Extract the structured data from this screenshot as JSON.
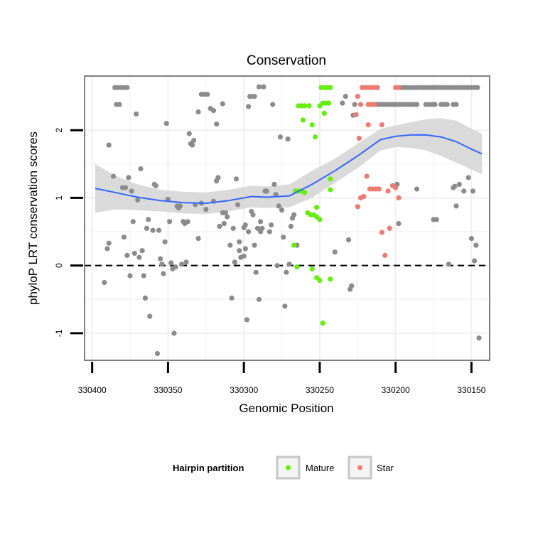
{
  "chart_data": {
    "type": "scatter",
    "title": "Conservation",
    "xlabel": "Genomic Position",
    "ylabel": "phyloP LRT conservation scores",
    "x_reversed": true,
    "xlim": [
      330405,
      330138
    ],
    "ylim": [
      -1.4,
      2.8
    ],
    "x_ticks": [
      330400,
      330350,
      330300,
      330250,
      330200,
      330150
    ],
    "y_ticks": [
      -1,
      0,
      1,
      2
    ],
    "reference_line": {
      "y": 0,
      "style": "dashed"
    },
    "legend": {
      "title": "Hairpin partition",
      "position": "bottom",
      "entries": [
        {
          "label": "Mature",
          "color": "#7CFC00"
        },
        {
          "label": "Star",
          "color": "#F8766D"
        }
      ]
    },
    "colors": {
      "other": "#8c8c8c",
      "mature": "#66ee11",
      "star": "#f07b72",
      "smooth": "#3366FF",
      "band": "#d6d6d6",
      "grid": "#efefef",
      "border": "#7f7f7f"
    },
    "smooth_line": {
      "x": [
        330398,
        330385,
        330370,
        330355,
        330340,
        330325,
        330310,
        330295,
        330285,
        330270,
        330255,
        330240,
        330225,
        330210,
        330200,
        330190,
        330180,
        330170,
        330160,
        330150,
        330143
      ],
      "y": [
        1.14,
        1.08,
        1.01,
        0.96,
        0.93,
        0.92,
        0.96,
        1.02,
        1.01,
        1.03,
        1.2,
        1.4,
        1.62,
        1.86,
        1.91,
        1.93,
        1.93,
        1.9,
        1.83,
        1.72,
        1.65
      ],
      "lower": [
        0.78,
        0.83,
        0.82,
        0.8,
        0.77,
        0.76,
        0.8,
        0.86,
        0.85,
        0.86,
        1.0,
        1.22,
        1.44,
        1.7,
        1.75,
        1.74,
        1.7,
        1.62,
        1.52,
        1.42,
        1.35
      ],
      "upper": [
        1.5,
        1.33,
        1.2,
        1.12,
        1.09,
        1.08,
        1.12,
        1.18,
        1.17,
        1.2,
        1.4,
        1.58,
        1.8,
        2.02,
        2.07,
        2.12,
        2.16,
        2.18,
        2.14,
        2.02,
        1.95
      ]
    },
    "series": [
      {
        "name": "Other",
        "points": [
          [
            330385,
            2.63
          ],
          [
            330383,
            2.63
          ],
          [
            330381,
            2.63
          ],
          [
            330379,
            2.63
          ],
          [
            330377,
            2.63
          ],
          [
            330384,
            2.38
          ],
          [
            330382,
            2.38
          ],
          [
            330389,
            1.78
          ],
          [
            330386,
            1.32
          ],
          [
            330380,
            1.15
          ],
          [
            330378,
            1.15
          ],
          [
            330376,
            1.3
          ],
          [
            330374,
            1.1
          ],
          [
            330392,
            -0.25
          ],
          [
            330390,
            0.25
          ],
          [
            330389,
            0.33
          ],
          [
            330379,
            0.42
          ],
          [
            330377,
            0.15
          ],
          [
            330375,
            -0.15
          ],
          [
            330373,
            0.65
          ],
          [
            330372,
            0.18
          ],
          [
            330371,
            2.24
          ],
          [
            330370,
            0.97
          ],
          [
            330369,
            0.12
          ],
          [
            330368,
            1.43
          ],
          [
            330367,
            0.22
          ],
          [
            330366,
            -0.15
          ],
          [
            330365,
            -0.48
          ],
          [
            330364,
            0.55
          ],
          [
            330363,
            0.68
          ],
          [
            330362,
            -0.75
          ],
          [
            330360,
            0.52
          ],
          [
            330359,
            1.2
          ],
          [
            330358,
            1.18
          ],
          [
            330357,
            -1.3
          ],
          [
            330356,
            0.52
          ],
          [
            330355,
            0.1
          ],
          [
            330354,
            0.02
          ],
          [
            330353,
            -0.12
          ],
          [
            330352,
            0.35
          ],
          [
            330351,
            2.1
          ],
          [
            330350,
            0.98
          ],
          [
            330349,
            0.65
          ],
          [
            330348,
            0.04
          ],
          [
            330347,
            -0.05
          ],
          [
            330346,
            -1.0
          ],
          [
            330345,
            -0.02
          ],
          [
            330344,
            0.88
          ],
          [
            330343,
            0.85
          ],
          [
            330342,
            0.88
          ],
          [
            330341,
            0.02
          ],
          [
            330340,
            0.65
          ],
          [
            330339,
            0.62
          ],
          [
            330338,
            0.05
          ],
          [
            330337,
            0.65
          ],
          [
            330336,
            1.95
          ],
          [
            330335,
            1.8
          ],
          [
            330334,
            1.78
          ],
          [
            330333,
            1.85
          ],
          [
            330330,
            2.27
          ],
          [
            330328,
            2.53
          ],
          [
            330326,
            2.53
          ],
          [
            330324,
            2.53
          ],
          [
            330322,
            2.32
          ],
          [
            330320,
            2.29
          ],
          [
            330318,
            1.25
          ],
          [
            330317,
            1.3
          ],
          [
            330316,
            0.58
          ],
          [
            330314,
            0.78
          ],
          [
            330312,
            0.78
          ],
          [
            330330,
            0.4
          ],
          [
            330332,
            0.9
          ],
          [
            330328,
            0.92
          ],
          [
            330325,
            0.83
          ],
          [
            330320,
            0.95
          ],
          [
            330318,
            2.09
          ],
          [
            330314,
            2.39
          ],
          [
            330313,
            0.62
          ],
          [
            330311,
            0.72
          ],
          [
            330309,
            0.3
          ],
          [
            330308,
            -0.48
          ],
          [
            330306,
            0.05
          ],
          [
            330305,
            1.28
          ],
          [
            330304,
            0.9
          ],
          [
            330303,
            0.35
          ],
          [
            330302,
            0.12
          ],
          [
            330300,
            0.56
          ],
          [
            330299,
            0.25
          ],
          [
            330298,
            -0.8
          ],
          [
            330297,
            2.35
          ],
          [
            330296,
            2.5
          ],
          [
            330295,
            2.5
          ],
          [
            330293,
            2.5
          ],
          [
            330290,
            2.64
          ],
          [
            330288,
            0.55
          ],
          [
            330287,
            2.64
          ],
          [
            330286,
            1.1
          ],
          [
            330285,
            1.1
          ],
          [
            330283,
            0.5
          ],
          [
            330282,
            0.6
          ],
          [
            330281,
            2.38
          ],
          [
            330280,
            1.2
          ],
          [
            330279,
            1.05
          ],
          [
            330278,
            0.0
          ],
          [
            330277,
            0.88
          ],
          [
            330276,
            1.9
          ],
          [
            330275,
            0.82
          ],
          [
            330274,
            0.42
          ],
          [
            330273,
            -0.6
          ],
          [
            330272,
            -0.1
          ],
          [
            330271,
            1.87
          ],
          [
            330270,
            0.02
          ],
          [
            330269,
            0.58
          ],
          [
            330268,
            0.7
          ],
          [
            330267,
            0.75
          ],
          [
            330266,
            1.1
          ],
          [
            330265,
            0.3
          ],
          [
            330303,
            0.22
          ],
          [
            330300,
            0.14
          ],
          [
            330299,
            0.6
          ],
          [
            330297,
            0.5
          ],
          [
            330294,
            0.75
          ],
          [
            330291,
            0.55
          ],
          [
            330289,
            0.65
          ],
          [
            330307,
            0.55
          ],
          [
            330295,
            0.8
          ],
          [
            330293,
            0.3
          ],
          [
            330292,
            -0.1
          ],
          [
            330290,
            -0.5
          ],
          [
            330289,
            0.5
          ],
          [
            330240,
            0.2
          ],
          [
            330235,
            2.4
          ],
          [
            330233,
            2.5
          ],
          [
            330231,
            0.38
          ],
          [
            330230,
            -0.35
          ],
          [
            330229,
            -0.3
          ],
          [
            330228,
            2.22
          ],
          [
            330227,
            2.38
          ],
          [
            330212,
            2.38
          ],
          [
            330210,
            2.38
          ],
          [
            330208,
            2.38
          ],
          [
            330206,
            2.38
          ],
          [
            330204,
            2.38
          ],
          [
            330202,
            2.38
          ],
          [
            330200,
            2.38
          ],
          [
            330198,
            2.38
          ],
          [
            330196,
            2.38
          ],
          [
            330194,
            2.38
          ],
          [
            330192,
            2.38
          ],
          [
            330190,
            2.38
          ],
          [
            330188,
            2.38
          ],
          [
            330186,
            2.38
          ],
          [
            330180,
            2.38
          ],
          [
            330178,
            2.38
          ],
          [
            330176,
            2.38
          ],
          [
            330174,
            2.38
          ],
          [
            330170,
            2.38
          ],
          [
            330168,
            2.38
          ],
          [
            330166,
            2.38
          ],
          [
            330162,
            2.38
          ],
          [
            330160,
            2.38
          ],
          [
            330198,
            2.63
          ],
          [
            330196,
            2.63
          ],
          [
            330194,
            2.63
          ],
          [
            330192,
            2.63
          ],
          [
            330190,
            2.63
          ],
          [
            330188,
            2.63
          ],
          [
            330186,
            2.63
          ],
          [
            330184,
            2.63
          ],
          [
            330182,
            2.63
          ],
          [
            330180,
            2.63
          ],
          [
            330178,
            2.63
          ],
          [
            330176,
            2.63
          ],
          [
            330174,
            2.63
          ],
          [
            330172,
            2.63
          ],
          [
            330170,
            2.63
          ],
          [
            330168,
            2.63
          ],
          [
            330166,
            2.63
          ],
          [
            330164,
            2.63
          ],
          [
            330162,
            2.63
          ],
          [
            330160,
            2.63
          ],
          [
            330158,
            2.63
          ],
          [
            330156,
            2.63
          ],
          [
            330154,
            2.63
          ],
          [
            330152,
            2.63
          ],
          [
            330150,
            2.63
          ],
          [
            330148,
            2.63
          ],
          [
            330146,
            2.63
          ],
          [
            330199,
            1.2
          ],
          [
            330198,
            0.62
          ],
          [
            330186,
            1.13
          ],
          [
            330175,
            0.68
          ],
          [
            330173,
            0.68
          ],
          [
            330165,
            0.02
          ],
          [
            330162,
            1.15
          ],
          [
            330161,
            1.17
          ],
          [
            330160,
            0.88
          ],
          [
            330158,
            1.2
          ],
          [
            330155,
            1.1
          ],
          [
            330152,
            1.3
          ],
          [
            330150,
            0.4
          ],
          [
            330149,
            1.1
          ],
          [
            330148,
            0.07
          ],
          [
            330147,
            0.3
          ],
          [
            330145,
            -1.07
          ]
        ]
      },
      {
        "name": "Mature",
        "points": [
          [
            330249,
            2.63
          ],
          [
            330247,
            2.63
          ],
          [
            330245,
            2.63
          ],
          [
            330243,
            2.63
          ],
          [
            330266,
            1.1
          ],
          [
            330264,
            1.1
          ],
          [
            330262,
            1.1
          ],
          [
            330260,
            1.08
          ],
          [
            330264,
            2.36
          ],
          [
            330262,
            2.36
          ],
          [
            330260,
            2.36
          ],
          [
            330257,
            2.36
          ],
          [
            330250,
            2.36
          ],
          [
            330248,
            2.4
          ],
          [
            330246,
            2.4
          ],
          [
            330244,
            2.4
          ],
          [
            330247,
            2.25
          ],
          [
            330261,
            2.15
          ],
          [
            330255,
            2.08
          ],
          [
            330253,
            1.9
          ],
          [
            330243,
            1.28
          ],
          [
            330243,
            1.12
          ],
          [
            330258,
            0.78
          ],
          [
            330256,
            0.75
          ],
          [
            330254,
            0.75
          ],
          [
            330252,
            0.86
          ],
          [
            330252,
            0.72
          ],
          [
            330250,
            0.68
          ],
          [
            330267,
            0.3
          ],
          [
            330265,
            -0.02
          ],
          [
            330255,
            -0.05
          ],
          [
            330252,
            -0.18
          ],
          [
            330250,
            -0.22
          ],
          [
            330243,
            -0.2
          ],
          [
            330248,
            -0.85
          ]
        ]
      },
      {
        "name": "Star",
        "points": [
          [
            330222,
            2.63
          ],
          [
            330220,
            2.63
          ],
          [
            330218,
            2.63
          ],
          [
            330216,
            2.63
          ],
          [
            330214,
            2.63
          ],
          [
            330212,
            2.63
          ],
          [
            330200,
            2.63
          ],
          [
            330198,
            2.63
          ],
          [
            330223,
            2.38
          ],
          [
            330218,
            2.38
          ],
          [
            330216,
            2.38
          ],
          [
            330214,
            2.38
          ],
          [
            330225,
            2.5
          ],
          [
            330226,
            2.23
          ],
          [
            330224,
            1.88
          ],
          [
            330218,
            2.08
          ],
          [
            330209,
            2.08
          ],
          [
            330219,
            1.32
          ],
          [
            330217,
            1.13
          ],
          [
            330215,
            1.13
          ],
          [
            330213,
            1.13
          ],
          [
            330211,
            1.13
          ],
          [
            330221,
            1.02
          ],
          [
            330205,
            1.1
          ],
          [
            330202,
            1.18
          ],
          [
            330200,
            1.15
          ],
          [
            330198,
            1.0
          ],
          [
            330209,
            0.49
          ],
          [
            330204,
            0.55
          ],
          [
            330207,
            0.15
          ],
          [
            330225,
            0.87
          ],
          [
            330223,
            1.0
          ]
        ]
      }
    ]
  }
}
